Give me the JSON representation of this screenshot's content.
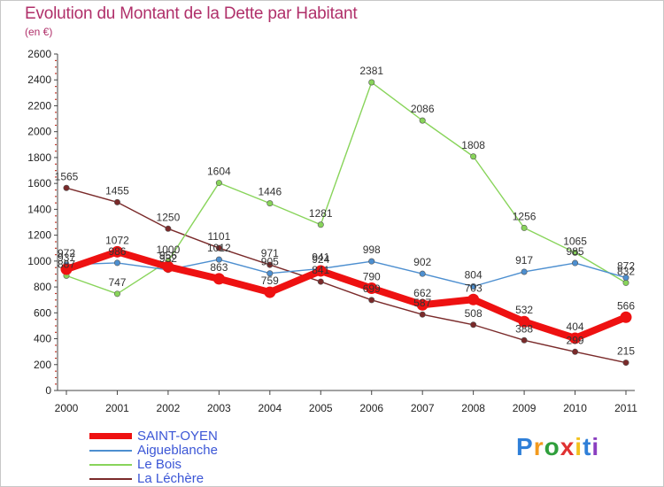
{
  "title": "Evolution du Montant de la Dette par Habitant",
  "subtitle": "(en €)",
  "brand": "Proxiti",
  "chart_data": {
    "type": "line",
    "title": "Evolution du Montant de la Dette par Habitant",
    "ylabel": "(en €)",
    "categories": [
      "2000",
      "2001",
      "2002",
      "2003",
      "2004",
      "2005",
      "2006",
      "2007",
      "2008",
      "2009",
      "2010",
      "2011"
    ],
    "ylim": [
      0,
      2600
    ],
    "yticks": [
      0,
      200,
      400,
      600,
      800,
      1000,
      1200,
      1400,
      1600,
      1800,
      2000,
      2200,
      2400,
      2600
    ],
    "grid": false,
    "legend_position": "bottom-left",
    "series": [
      {
        "name": "SAINT-OYEN",
        "color": "#ee1111",
        "values": [
          937,
          1072,
          956,
          863,
          759,
          924,
          790,
          662,
          703,
          532,
          404,
          566
        ]
      },
      {
        "name": "Aigueblanche",
        "color": "#4d8fd0",
        "values": [
          972,
          986,
          932,
          1012,
          905,
          941,
          998,
          902,
          804,
          917,
          985,
          872
        ]
      },
      {
        "name": "Le Bois",
        "color": "#88d45a",
        "values": [
          887,
          747,
          1000,
          1604,
          1446,
          1281,
          2381,
          2086,
          1808,
          1256,
          1065,
          832
        ]
      },
      {
        "name": "La Léchère",
        "color": "#7a2a2a",
        "values": [
          1565,
          1455,
          1250,
          1101,
          971,
          841,
          699,
          587,
          508,
          388,
          299,
          215
        ]
      }
    ]
  }
}
